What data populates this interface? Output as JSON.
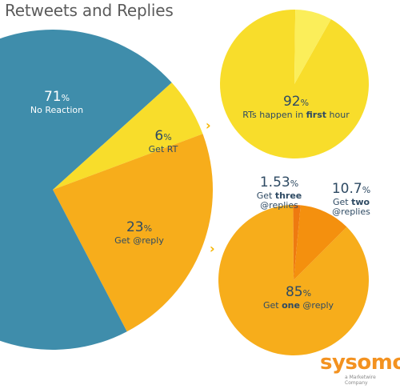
{
  "title": "Retweets and Replies",
  "logo": {
    "name": "sysomos",
    "tagline": "a Marketwire Company"
  },
  "colors": {
    "blue": "#3f8dab",
    "yellow": "#f8dd2b",
    "yellow_light": "#fbee5a",
    "orange": "#f7ad1b",
    "orange_dark": "#f4900e",
    "orange_darker": "#ee7a10"
  },
  "chart_data": [
    {
      "type": "pie",
      "slices": [
        {
          "pct_label": "71",
          "label": "No Reaction",
          "value": 71,
          "color": "#3f8dab"
        },
        {
          "pct_label": "6",
          "label": "Get RT",
          "value": 6,
          "color": "#f8dd2b"
        },
        {
          "pct_label": "23",
          "label": "Get @reply",
          "value": 23,
          "color": "#f7ad1b"
        }
      ]
    },
    {
      "type": "pie",
      "slices": [
        {
          "pct_label": "92",
          "label_pre": "RTs happen in ",
          "label_bold": "first",
          "label_post": " hour",
          "value": 92,
          "color": "#f8dd2b"
        },
        {
          "pct_label": "",
          "value": 8,
          "color": "#fbee5a"
        }
      ]
    },
    {
      "type": "pie",
      "slices": [
        {
          "pct_label": "85",
          "label_pre": "Get ",
          "label_bold": "one",
          "label_post": " @reply",
          "value": 85,
          "color": "#f7ad1b"
        },
        {
          "pct_label": "10.7",
          "label_pre": "Get ",
          "label_bold": "two",
          "label_post": " @replies",
          "value": 10.7,
          "color": "#f4900e"
        },
        {
          "pct_label": "1.53",
          "label_pre": "Get ",
          "label_bold": "three",
          "label_post": " @replies",
          "value": 1.53,
          "color": "#ee7a10"
        }
      ]
    }
  ],
  "pct_sign": "%"
}
